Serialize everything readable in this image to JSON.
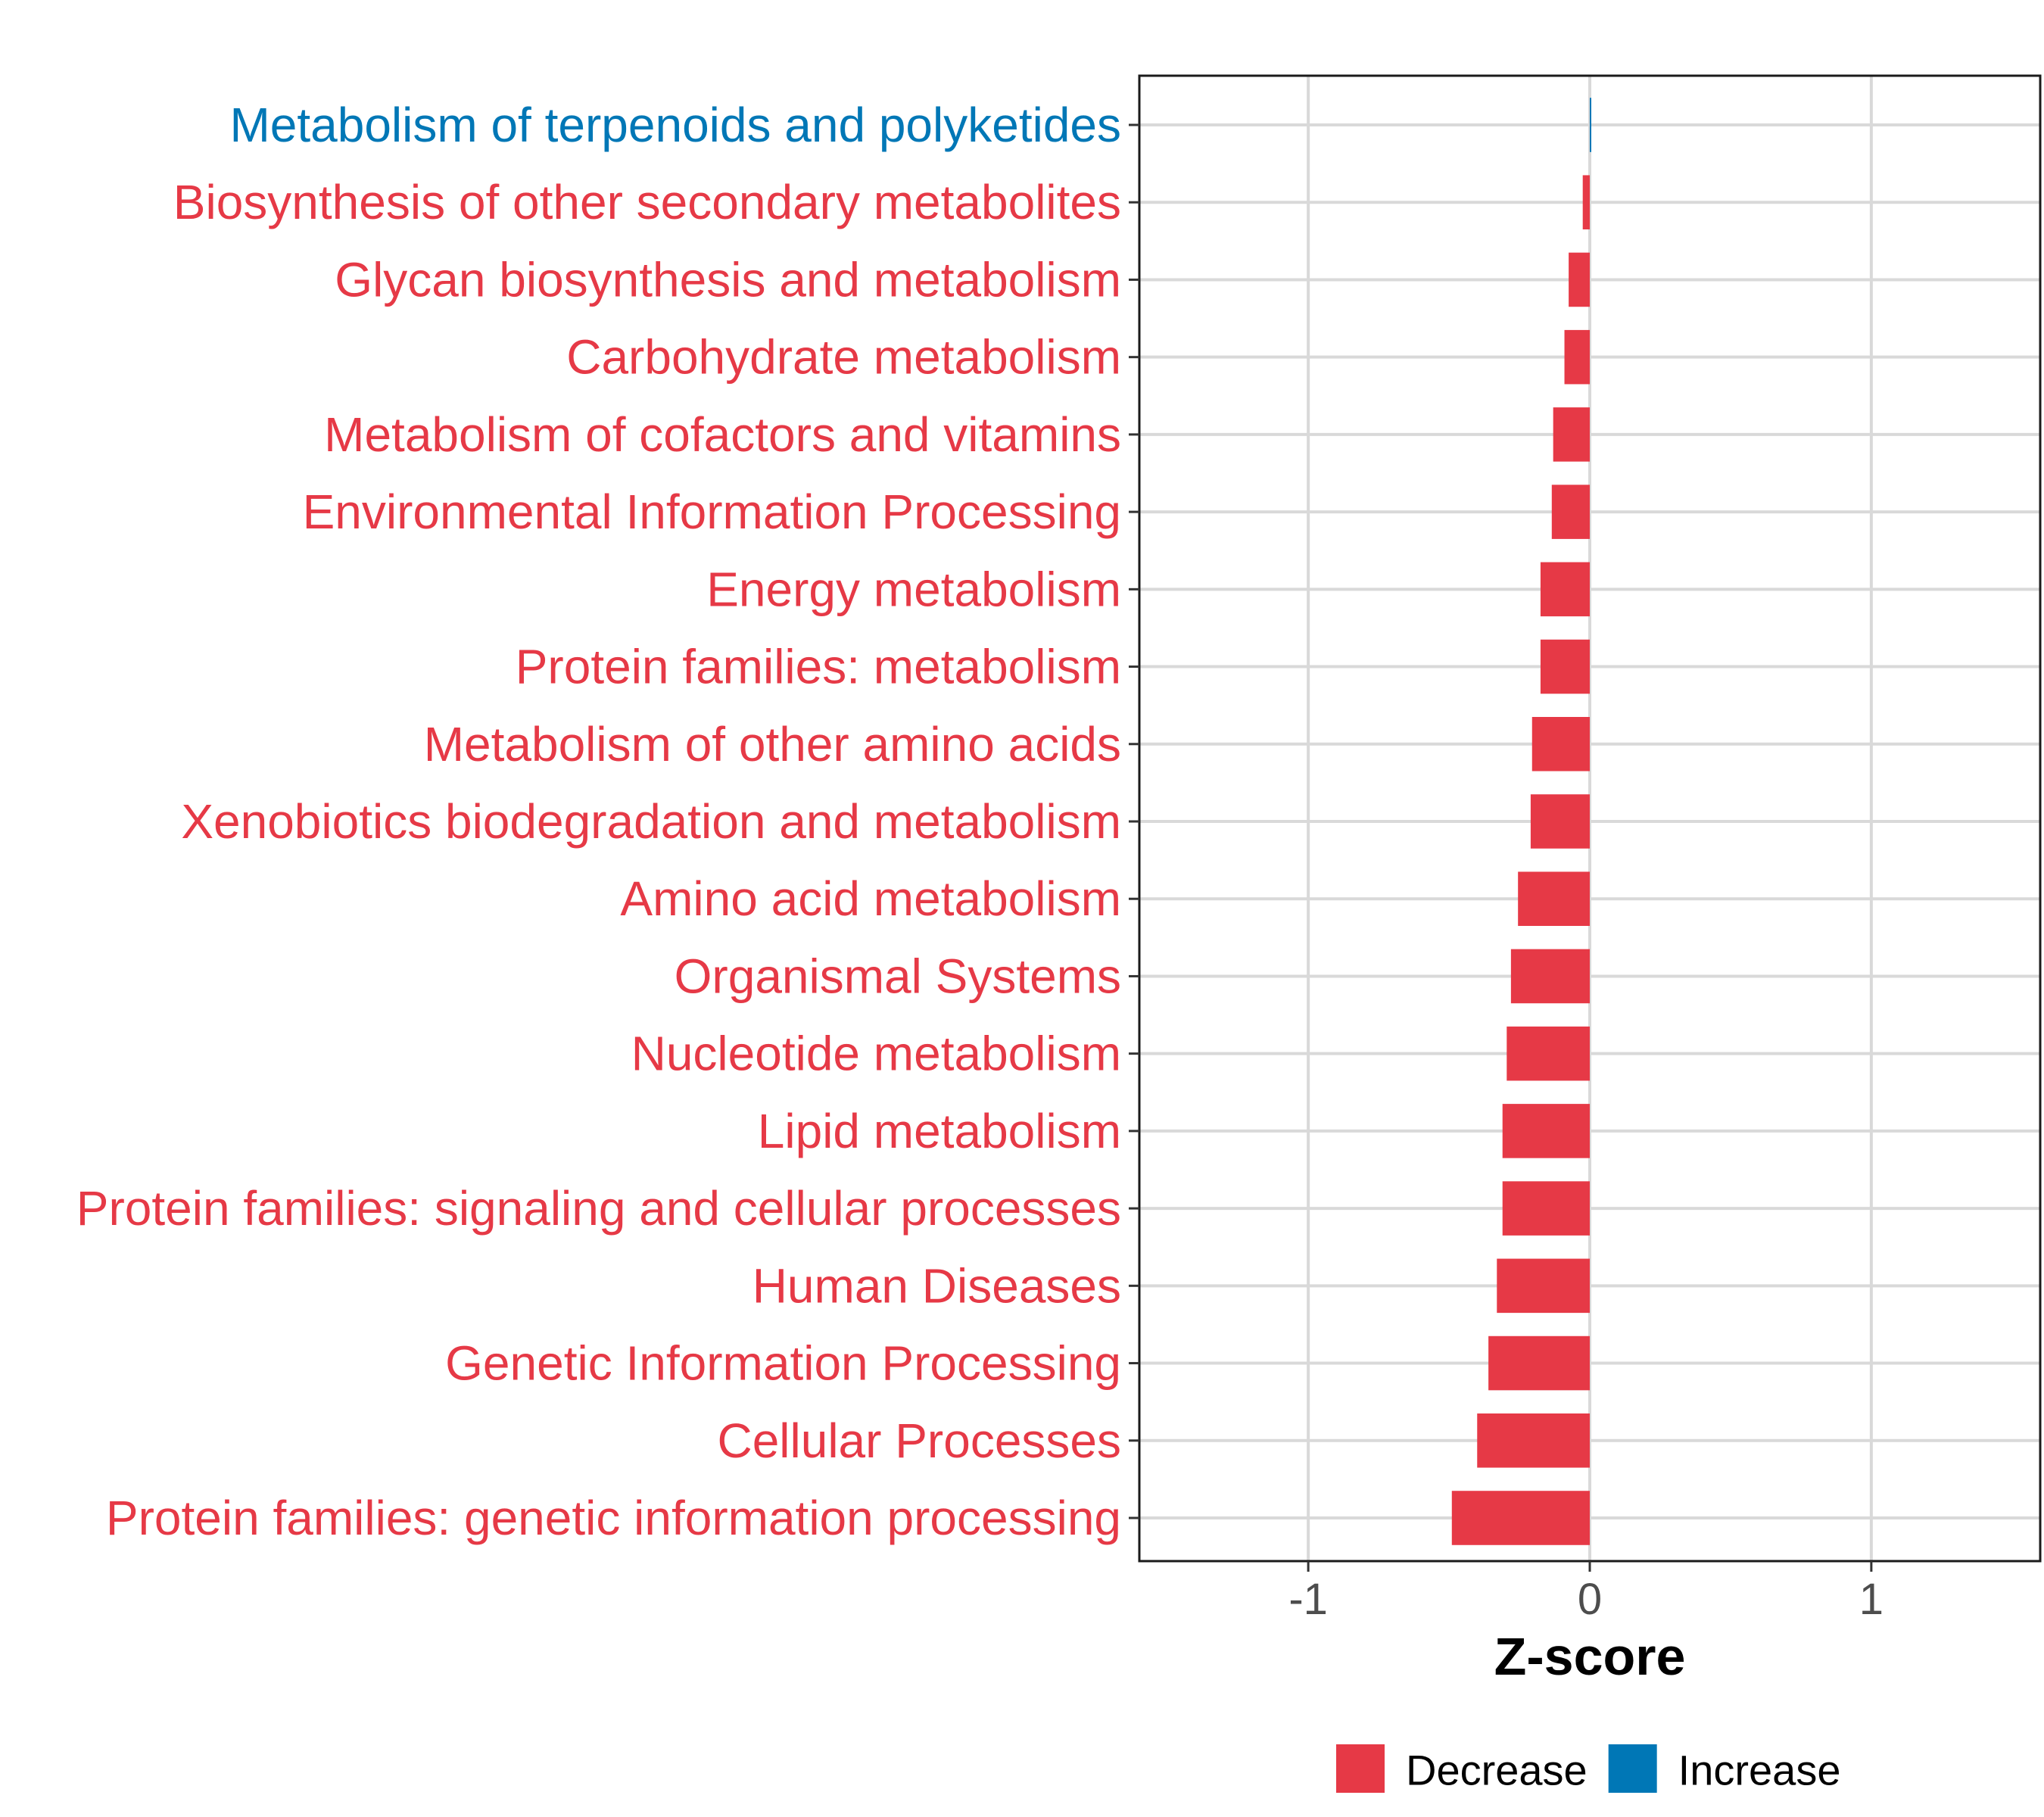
{
  "chart_data": {
    "type": "bar",
    "orientation": "horizontal",
    "title": "",
    "xlabel": "Z-score",
    "ylabel": "",
    "xlim": [
      -1.6,
      1.6
    ],
    "xticks": [
      -1,
      0,
      1
    ],
    "xtick_labels": [
      "-1",
      "0",
      "1"
    ],
    "grid": true,
    "categories": [
      "Metabolism of terpenoids and polyketides",
      "Biosynthesis of other secondary metabolites",
      "Glycan biosynthesis and metabolism",
      "Carbohydrate metabolism",
      "Metabolism of cofactors and vitamins",
      "Environmental Information Processing",
      "Energy metabolism",
      "Protein families: metabolism",
      "Metabolism of other amino acids",
      "Xenobiotics biodegradation and metabolism",
      "Amino acid metabolism",
      "Organismal Systems",
      "Nucleotide metabolism",
      "Lipid metabolism",
      "Protein families: signaling and cellular processes",
      "Human Diseases",
      "Genetic Information Processing",
      "Cellular Processes",
      "Protein families: genetic information processing"
    ],
    "values": [
      0.005,
      -0.025,
      -0.075,
      -0.09,
      -0.13,
      -0.135,
      -0.175,
      -0.175,
      -0.205,
      -0.21,
      -0.255,
      -0.28,
      -0.295,
      -0.31,
      -0.31,
      -0.33,
      -0.36,
      -0.4,
      -0.49
    ],
    "direction": [
      "Increase",
      "Decrease",
      "Decrease",
      "Decrease",
      "Decrease",
      "Decrease",
      "Decrease",
      "Decrease",
      "Decrease",
      "Decrease",
      "Decrease",
      "Decrease",
      "Decrease",
      "Decrease",
      "Decrease",
      "Decrease",
      "Decrease",
      "Decrease",
      "Decrease"
    ],
    "legend": {
      "placement": "bottom",
      "entries": [
        {
          "label": "Decrease",
          "color": "#E63946"
        },
        {
          "label": "Increase",
          "color": "#0077B6"
        }
      ]
    }
  }
}
